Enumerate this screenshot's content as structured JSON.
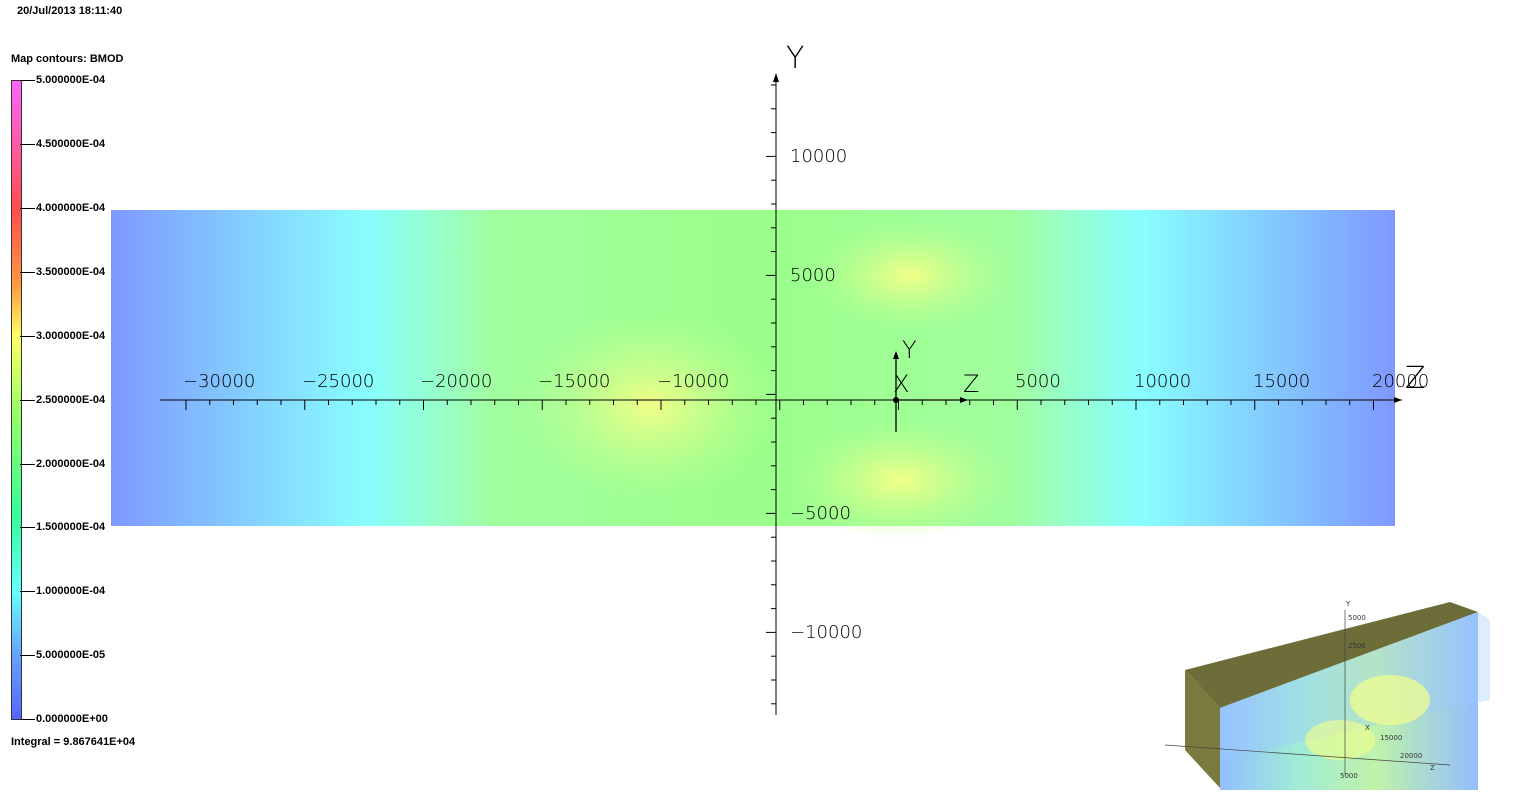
{
  "timestamp": "20/Jul/2013 18:11:40",
  "legend": {
    "title": "Map contours: BMOD",
    "labels": [
      "5.000000E-04",
      "4.500000E-04",
      "4.000000E-04",
      "3.500000E-04",
      "3.000000E-04",
      "2.500000E-04",
      "2.000000E-04",
      "1.500000E-04",
      "1.000000E-04",
      "5.000000E-05",
      "0.000000E+00"
    ]
  },
  "integral": "Integral = 9.867641E+04",
  "axes": {
    "y_label": "Y",
    "z_label": "Z",
    "origin_y": "Y",
    "origin_x": "X",
    "origin_z": "Z",
    "x_ticks": [
      "−30000",
      "−25000",
      "−20000",
      "−15000",
      "−10000",
      "5000",
      "10000",
      "15000",
      "20000"
    ],
    "y_ticks": [
      "10000",
      "5000",
      "−5000",
      "−10000"
    ]
  },
  "colors": {
    "max": "#ff66ff",
    "min": "#5566ff"
  },
  "inset": {
    "labels": [
      "Y",
      "5000",
      "2500",
      "Z",
      "X",
      "15000",
      "20000",
      "5000"
    ]
  }
}
